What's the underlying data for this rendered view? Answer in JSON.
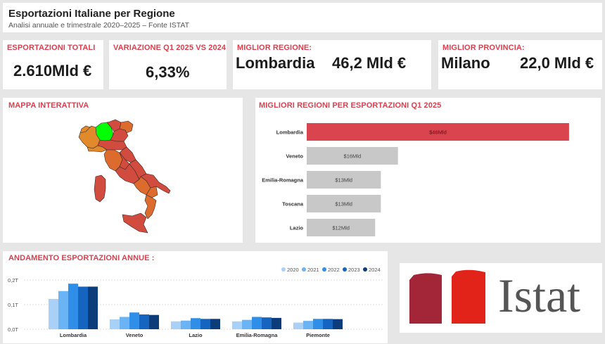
{
  "header": {
    "title": "Esportazioni Italiane per Regione",
    "subtitle": "Analisi annuale e trimestrale 2020–2025 – Fonte ISTAT"
  },
  "kpis": {
    "total": {
      "label": "ESPORTAZIONI TOTALI",
      "value": "2.610Mld €"
    },
    "variation": {
      "label": "VARIAZIONE Q1 2025 VS 2024",
      "value": "6,33%"
    },
    "best_region": {
      "label": "MIGLIOR REGIONE:",
      "name": "Lombardia",
      "value": "46,2 Mld €"
    },
    "best_province": {
      "label": "MIGLIOR PROVINCIA:",
      "name": "Milano",
      "value": "22,0 Mld €"
    }
  },
  "map": {
    "title": "MAPPA INTERATTIVA",
    "colors": {
      "highlight": "#00ff00",
      "high": "#d24b3f",
      "mid": "#dd6b2e",
      "low": "#e08a2c",
      "border": "#3a2a25"
    }
  },
  "colors": {
    "accent_red": "#d9404f",
    "bar_selected": "#d9444f",
    "bar_default": "#c8c8c8",
    "years": [
      "#a9d1f7",
      "#6ab4f5",
      "#2f8fe8",
      "#1565c0",
      "#0d3c7a"
    ]
  },
  "logo": {
    "text": "Istat",
    "colors": {
      "dark_red": "#a32638",
      "red": "#e2231a",
      "text": "#555555"
    }
  },
  "chart_data": [
    {
      "type": "bar",
      "orientation": "horizontal",
      "title": "MIGLIORI REGIONI PER ESPORTAZIONI Q1 2025",
      "categories": [
        "Lombardia",
        "Veneto",
        "Emilia-Romagna",
        "Toscana",
        "Lazio"
      ],
      "values": [
        46,
        16,
        13,
        13,
        12
      ],
      "data_labels": [
        "$46Mld",
        "$16Mld",
        "$13Mld",
        "$13Mld",
        "$12Mld"
      ],
      "selected": "Lombardia",
      "xlim": [
        0,
        47
      ]
    },
    {
      "type": "bar",
      "title": "ANDAMENTO ESPORTAZIONI ANNUE :",
      "categories": [
        "Lombardia",
        "Veneto",
        "Lazio",
        "Emilia-Romagna",
        "Piemonte"
      ],
      "series": [
        {
          "name": "2020",
          "values": [
            0.123,
            0.04,
            0.032,
            0.032,
            0.027
          ]
        },
        {
          "name": "2021",
          "values": [
            0.155,
            0.05,
            0.035,
            0.038,
            0.034
          ]
        },
        {
          "name": "2022",
          "values": [
            0.185,
            0.068,
            0.045,
            0.05,
            0.042
          ]
        },
        {
          "name": "2023",
          "values": [
            0.173,
            0.06,
            0.042,
            0.048,
            0.042
          ]
        },
        {
          "name": "2024",
          "values": [
            0.173,
            0.058,
            0.042,
            0.046,
            0.041
          ]
        }
      ],
      "ylim": [
        0,
        0.2
      ],
      "yticks": [
        "0,0T",
        "0,1T",
        "0,2T"
      ],
      "grid": true,
      "legend_position": "top-right"
    }
  ]
}
